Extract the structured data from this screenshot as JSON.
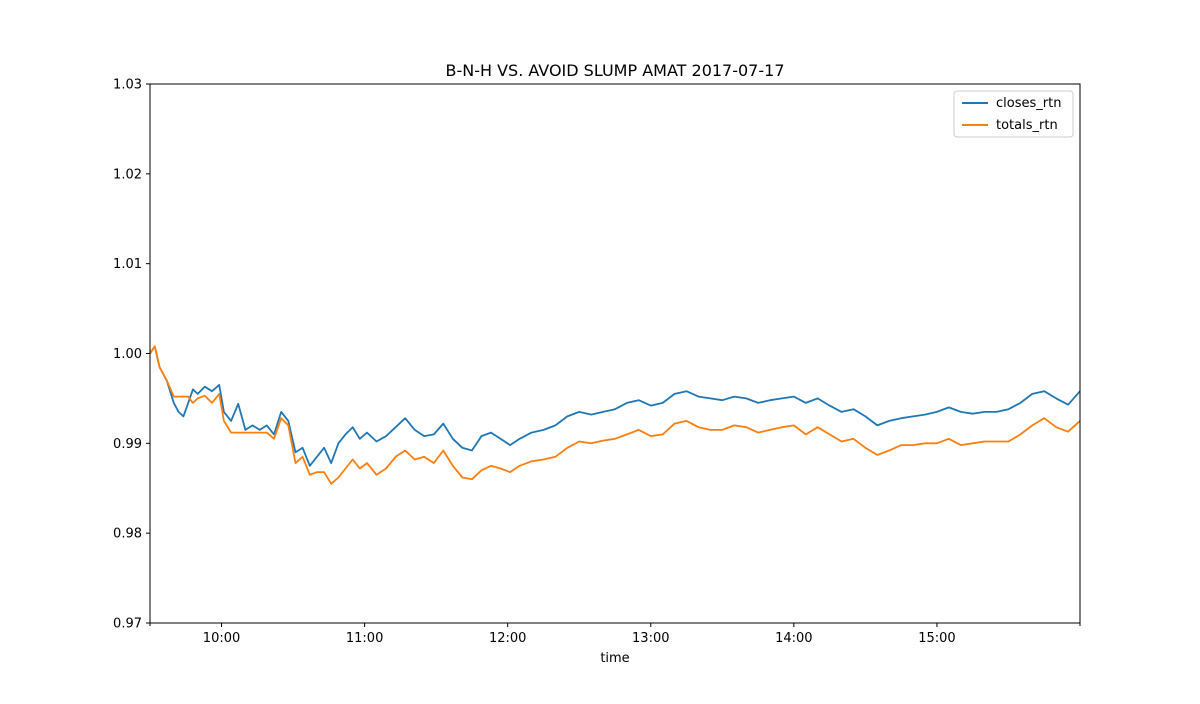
{
  "chart_data": {
    "type": "line",
    "title": "B-N-H VS. AVOID SLUMP AMAT 2017-07-17",
    "xlabel": "time",
    "ylabel": "",
    "xlim": [
      "09:30",
      "16:00"
    ],
    "ylim": [
      0.97,
      1.03
    ],
    "yticks": [
      "0.97",
      "0.98",
      "0.99",
      "1.00",
      "1.01",
      "1.02",
      "1.03"
    ],
    "xticks": [
      "10:00",
      "11:00",
      "12:00",
      "13:00",
      "14:00",
      "15:00"
    ],
    "grid": false,
    "legend_position": "top-right",
    "series": [
      {
        "name": "closes_rtn",
        "color": "#1f77b4",
        "x": [
          "09:30",
          "09:32",
          "09:34",
          "09:37",
          "09:40",
          "09:42",
          "09:44",
          "09:46",
          "09:48",
          "09:50",
          "09:53",
          "09:56",
          "09:59",
          "10:01",
          "10:04",
          "10:07",
          "10:10",
          "10:13",
          "10:16",
          "10:19",
          "10:22",
          "10:25",
          "10:28",
          "10:31",
          "10:34",
          "10:37",
          "10:40",
          "10:43",
          "10:46",
          "10:49",
          "10:52",
          "10:55",
          "10:58",
          "11:01",
          "11:05",
          "11:09",
          "11:13",
          "11:17",
          "11:21",
          "11:25",
          "11:29",
          "11:33",
          "11:37",
          "11:41",
          "11:45",
          "11:49",
          "11:53",
          "11:57",
          "12:01",
          "12:05",
          "12:10",
          "12:15",
          "12:20",
          "12:25",
          "12:30",
          "12:35",
          "12:40",
          "12:45",
          "12:50",
          "12:55",
          "13:00",
          "13:05",
          "13:10",
          "13:15",
          "13:20",
          "13:25",
          "13:30",
          "13:35",
          "13:40",
          "13:45",
          "13:50",
          "13:55",
          "14:00",
          "14:05",
          "14:10",
          "14:15",
          "14:20",
          "14:25",
          "14:30",
          "14:35",
          "14:40",
          "14:45",
          "14:50",
          "14:55",
          "15:00",
          "15:05",
          "15:10",
          "15:15",
          "15:20",
          "15:25",
          "15:30",
          "15:35",
          "15:40",
          "15:45",
          "15:50",
          "15:55",
          "16:00"
        ],
        "values": [
          1.0,
          1.0008,
          0.9985,
          0.997,
          0.9945,
          0.9935,
          0.993,
          0.9945,
          0.996,
          0.9955,
          0.9963,
          0.9958,
          0.9965,
          0.9935,
          0.9925,
          0.9944,
          0.9915,
          0.992,
          0.9915,
          0.992,
          0.991,
          0.9935,
          0.9925,
          0.989,
          0.9895,
          0.9875,
          0.9885,
          0.9895,
          0.9878,
          0.99,
          0.991,
          0.9918,
          0.9905,
          0.9912,
          0.9902,
          0.9908,
          0.9918,
          0.9928,
          0.9915,
          0.9908,
          0.991,
          0.9922,
          0.9905,
          0.9895,
          0.9892,
          0.9908,
          0.9912,
          0.9905,
          0.9898,
          0.9905,
          0.9912,
          0.9915,
          0.992,
          0.993,
          0.9935,
          0.9932,
          0.9935,
          0.9938,
          0.9945,
          0.9948,
          0.9942,
          0.9945,
          0.9955,
          0.9958,
          0.9952,
          0.995,
          0.9948,
          0.9952,
          0.995,
          0.9945,
          0.9948,
          0.995,
          0.9952,
          0.9945,
          0.995,
          0.9942,
          0.9935,
          0.9938,
          0.993,
          0.992,
          0.9925,
          0.9928,
          0.993,
          0.9932,
          0.9935,
          0.994,
          0.9935,
          0.9933,
          0.9935,
          0.9935,
          0.9938,
          0.9945,
          0.9955,
          0.9958,
          0.995,
          0.9943,
          0.9958
        ]
      },
      {
        "name": "totals_rtn",
        "color": "#ff7f0e",
        "x": [
          "09:30",
          "09:32",
          "09:34",
          "09:37",
          "09:40",
          "09:42",
          "09:44",
          "09:46",
          "09:48",
          "09:50",
          "09:53",
          "09:56",
          "09:59",
          "10:01",
          "10:04",
          "10:07",
          "10:10",
          "10:13",
          "10:16",
          "10:19",
          "10:22",
          "10:25",
          "10:28",
          "10:31",
          "10:34",
          "10:37",
          "10:40",
          "10:43",
          "10:46",
          "10:49",
          "10:52",
          "10:55",
          "10:58",
          "11:01",
          "11:05",
          "11:09",
          "11:13",
          "11:17",
          "11:21",
          "11:25",
          "11:29",
          "11:33",
          "11:37",
          "11:41",
          "11:45",
          "11:49",
          "11:53",
          "11:57",
          "12:01",
          "12:05",
          "12:10",
          "12:15",
          "12:20",
          "12:25",
          "12:30",
          "12:35",
          "12:40",
          "12:45",
          "12:50",
          "12:55",
          "13:00",
          "13:05",
          "13:10",
          "13:15",
          "13:20",
          "13:25",
          "13:30",
          "13:35",
          "13:40",
          "13:45",
          "13:50",
          "13:55",
          "14:00",
          "14:05",
          "14:10",
          "14:15",
          "14:20",
          "14:25",
          "14:30",
          "14:35",
          "14:40",
          "14:45",
          "14:50",
          "14:55",
          "15:00",
          "15:05",
          "15:10",
          "15:15",
          "15:20",
          "15:25",
          "15:30",
          "15:35",
          "15:40",
          "15:45",
          "15:50",
          "15:55",
          "16:00"
        ],
        "values": [
          1.0,
          1.0008,
          0.9985,
          0.997,
          0.9952,
          0.9952,
          0.9952,
          0.9952,
          0.9945,
          0.995,
          0.9953,
          0.9945,
          0.9955,
          0.9925,
          0.9912,
          0.9912,
          0.9912,
          0.9912,
          0.9912,
          0.9912,
          0.9905,
          0.9928,
          0.992,
          0.9878,
          0.9885,
          0.9865,
          0.9868,
          0.9868,
          0.9855,
          0.9862,
          0.9872,
          0.9882,
          0.9872,
          0.9878,
          0.9865,
          0.9872,
          0.9885,
          0.9892,
          0.9882,
          0.9885,
          0.9878,
          0.9892,
          0.9875,
          0.9862,
          0.986,
          0.987,
          0.9875,
          0.9872,
          0.9868,
          0.9875,
          0.988,
          0.9882,
          0.9885,
          0.9895,
          0.9902,
          0.99,
          0.9903,
          0.9905,
          0.991,
          0.9915,
          0.9908,
          0.991,
          0.9922,
          0.9925,
          0.9918,
          0.9915,
          0.9915,
          0.992,
          0.9918,
          0.9912,
          0.9915,
          0.9918,
          0.992,
          0.991,
          0.9918,
          0.991,
          0.9902,
          0.9905,
          0.9895,
          0.9887,
          0.9892,
          0.9898,
          0.9898,
          0.99,
          0.99,
          0.9905,
          0.9898,
          0.99,
          0.9902,
          0.9902,
          0.9902,
          0.991,
          0.992,
          0.9928,
          0.9918,
          0.9913,
          0.9925
        ]
      }
    ]
  }
}
